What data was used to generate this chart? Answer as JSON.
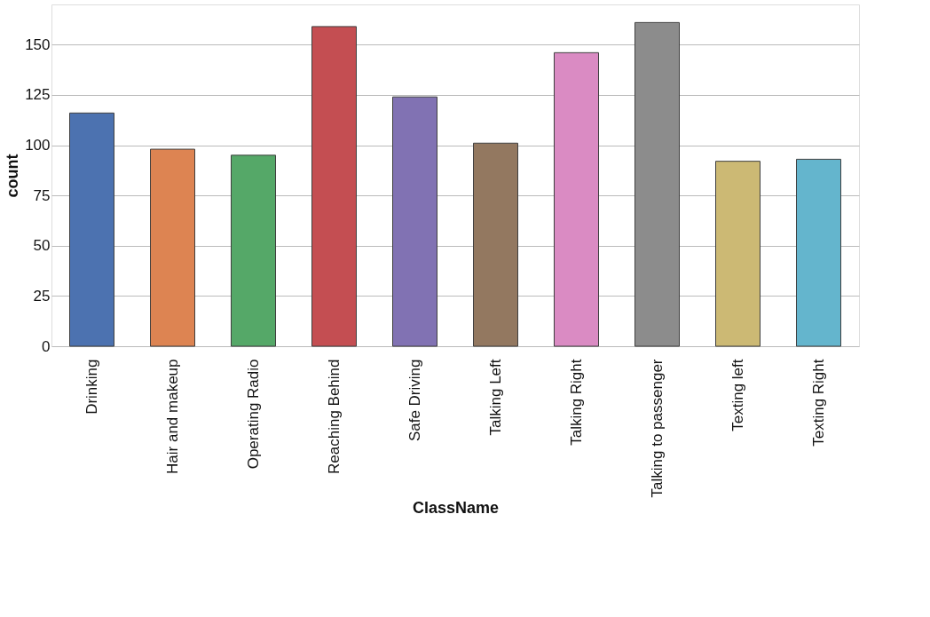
{
  "chart_data": {
    "type": "bar",
    "xlabel": "ClassName",
    "ylabel": "count",
    "categories": [
      "Drinking",
      "Hair and makeup",
      "Operating Radio",
      "Reaching Behind",
      "Safe Driving",
      "Talking Left",
      "Talking Right",
      "Talking to passenger",
      "Texting left",
      "Texting Right"
    ],
    "values": [
      116,
      98,
      95,
      159,
      124,
      101,
      146,
      161,
      92,
      93
    ],
    "colors": [
      "#4c72b0",
      "#dd8452",
      "#55a868",
      "#c44e52",
      "#8172b3",
      "#937860",
      "#da8bc3",
      "#8c8c8c",
      "#ccb974",
      "#64b5cd"
    ],
    "ylim": [
      0,
      170
    ],
    "yticks": [
      0,
      25,
      50,
      75,
      100,
      125,
      150
    ],
    "grid": "y"
  }
}
